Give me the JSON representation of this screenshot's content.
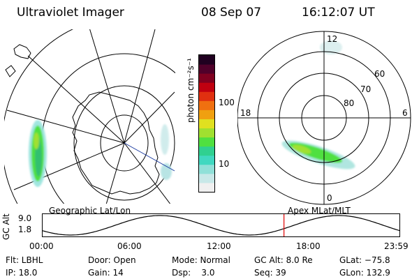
{
  "header": {
    "instrument": "Ultraviolet Imager",
    "date": "08 Sep 07",
    "time": "16:12:07 UT"
  },
  "left_panel": {
    "caption": "Geographic Lat/Lon"
  },
  "right_panel": {
    "caption": "Apex MLat/MLT",
    "mlt_labels": {
      "top": "12",
      "left": "18",
      "right": "6",
      "bottom": "0"
    },
    "lat_labels": [
      "60",
      "70",
      "80"
    ]
  },
  "colorbar": {
    "unit_label": "photon cm⁻²s⁻¹",
    "ticks": [
      "100",
      "10"
    ],
    "scale": "log",
    "colors": [
      "#f0f0f0",
      "#c8e8e8",
      "#90e0d8",
      "#40d8c0",
      "#30d090",
      "#50e040",
      "#a0e030",
      "#e0e020",
      "#f0a010",
      "#f07010",
      "#e03010",
      "#c00010",
      "#800020",
      "#50002a",
      "#200020"
    ]
  },
  "altitude_plot": {
    "ylabel": "GC Alt",
    "yticks": [
      "9.0",
      "1.8"
    ],
    "xticks": [
      "00:00",
      "06:00",
      "12:00",
      "18:00",
      "23:59"
    ],
    "marker_color": "#e00000"
  },
  "status": {
    "flt": "Flt: LBHL",
    "ip": "IP: 18.0",
    "door": "Door: Open",
    "gain": "Gain: 14",
    "mode": "Mode: Normal",
    "dsp": "Dsp:    3.0",
    "gc_alt": "GC Alt: 8.0 Re",
    "seq": "Seq: 39",
    "glat": "GLat: −75.8",
    "glon": "GLon: 132.9"
  }
}
